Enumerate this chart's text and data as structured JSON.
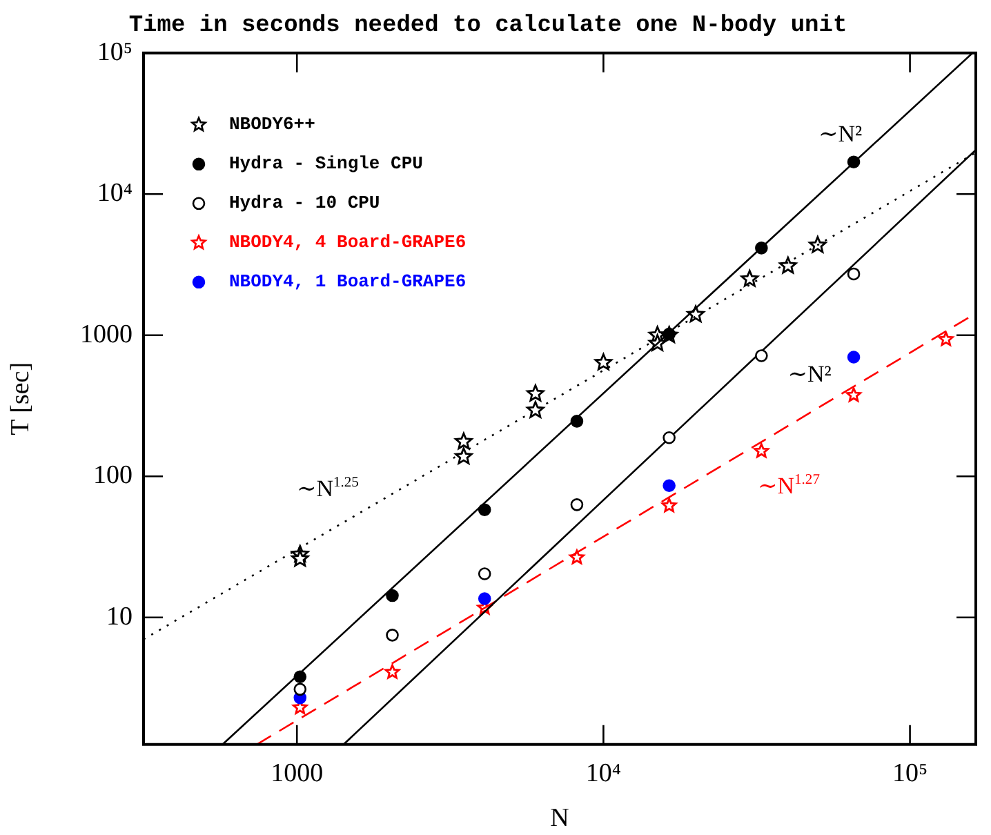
{
  "chart_data": {
    "type": "scatter",
    "title": "Time in seconds needed to calculate one N-body unit",
    "xlabel": "N",
    "ylabel": "T [sec]",
    "log": "xy",
    "grid": false,
    "legend": "top left",
    "xlim": [
      316,
      164000
    ],
    "ylim": [
      1.26,
      100000
    ],
    "xticks": [
      1000,
      {
        "value": 10000,
        "label": "10⁴"
      },
      {
        "value": 100000,
        "label": "10⁵"
      }
    ],
    "yticks": [
      10,
      100,
      1000,
      {
        "value": 10000,
        "label": "10⁴"
      },
      {
        "value": 100000,
        "label": "10⁵"
      }
    ],
    "series": [
      {
        "name": "NBODY6++",
        "color": "#000000",
        "marker": "star",
        "x": [
          1024,
          1024,
          3500,
          3500,
          6000,
          6000,
          10000,
          15000,
          15000,
          16384,
          20000,
          30000,
          40000,
          50000
        ],
        "values": [
          28,
          26,
          176,
          138,
          385,
          294,
          640,
          1000,
          875,
          1000,
          1400,
          2500,
          3100,
          4340
        ]
      },
      {
        "name": "Hydra - Single CPU",
        "color": "#000000",
        "marker": "circle",
        "x": [
          1024,
          2048,
          4096,
          8192,
          16384,
          32768,
          65536
        ],
        "values": [
          3.8,
          14.3,
          58,
          246,
          1020,
          4150,
          16900
        ]
      },
      {
        "name": "Hydra - 10 CPU",
        "color": "#000000",
        "marker": "circle",
        "x": [
          1024,
          2048,
          4096,
          8192,
          16384,
          32768,
          65536
        ],
        "values": [
          3.1,
          7.5,
          20.4,
          63,
          188,
          716,
          2720
        ]
      },
      {
        "name": "NBODY4, 4 Board-GRAPE6",
        "color": "#ff0000",
        "marker": "star",
        "x": [
          1024,
          2048,
          4096,
          8192,
          16384,
          32768,
          65536,
          131072
        ],
        "values": [
          2.3,
          4.1,
          11.7,
          26.6,
          62,
          151,
          376,
          935
        ]
      },
      {
        "name": "NBODY4, 1 Board-GRAPE6",
        "color": "#0000ff",
        "marker": "circle",
        "x": [
          1024,
          4096,
          16384,
          65536
        ],
        "values": [
          2.7,
          13.6,
          86,
          700
        ]
      },
      {
        "type": "line",
        "color": "#000000",
        "line_style": "solid",
        "x": [
          572,
          160000
        ],
        "values": [
          1.26,
          100000
        ]
      },
      {
        "type": "line",
        "color": "#000000",
        "line_style": "solid",
        "x": [
          1420,
          164000
        ],
        "values": [
          1.26,
          20600
        ]
      },
      {
        "type": "line",
        "color": "#000000",
        "line_style": "dotted",
        "x": [
          316,
          164000
        ],
        "values": [
          7.0,
          19700
        ]
      },
      {
        "type": "line",
        "color": "#ff0000",
        "line_style": "dashed",
        "x": [
          740,
          164000
        ],
        "values": [
          1.26,
          1430
        ]
      }
    ],
    "annotations": [
      "∼N²",
      "∼N²",
      "∼N$^{1.25}$",
      "∼N$^{1.27}$"
    ]
  }
}
